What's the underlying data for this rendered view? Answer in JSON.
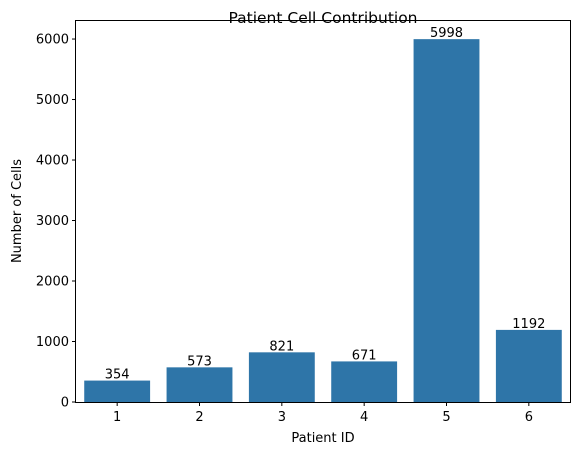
{
  "chart_data": {
    "type": "bar",
    "title": "Patient Cell Contribution",
    "xlabel": "Patient ID",
    "ylabel": "Number of Cells",
    "categories": [
      "1",
      "2",
      "3",
      "4",
      "5",
      "6"
    ],
    "values": [
      354,
      573,
      821,
      671,
      5998,
      1192
    ],
    "data_labels": [
      "354",
      "573",
      "821",
      "671",
      "5998",
      "1192"
    ],
    "yticks": [
      0,
      1000,
      2000,
      3000,
      4000,
      5000,
      6000
    ],
    "ylim": [
      0,
      6298
    ],
    "grid": false,
    "legend": "none",
    "bar_color": "#2e75a8"
  }
}
